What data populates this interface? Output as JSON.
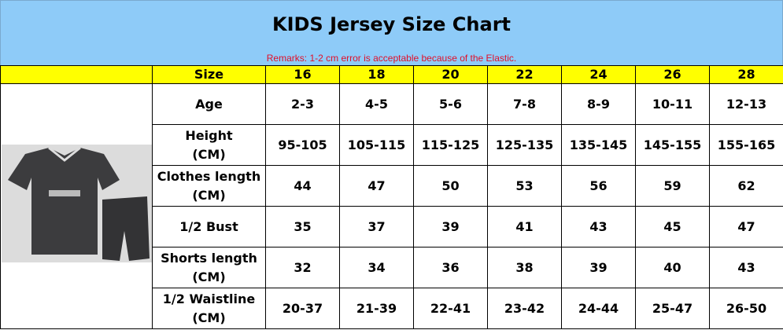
{
  "header": {
    "title": "KIDS Jersey Size Chart",
    "remark": "Remarks: 1-2 cm error is acceptable because of the Elastic."
  },
  "table": {
    "size_label": "Size",
    "sizes": [
      16,
      18,
      20,
      22,
      24,
      26,
      28
    ],
    "rows": [
      {
        "label": [
          "Age"
        ],
        "values": [
          "2-3",
          "4-5",
          "5-6",
          "7-8",
          "8-9",
          "10-11",
          "12-13"
        ]
      },
      {
        "label": [
          "Height",
          "(CM)"
        ],
        "values": [
          "95-105",
          "105-115",
          "115-125",
          "125-135",
          "135-145",
          "145-155",
          "155-165"
        ]
      },
      {
        "label": [
          "Clothes length",
          "(CM)"
        ],
        "values": [
          44,
          47,
          50,
          53,
          56,
          59,
          62
        ]
      },
      {
        "label": [
          "1/2 Bust"
        ],
        "values": [
          35,
          37,
          39,
          41,
          43,
          45,
          47
        ]
      },
      {
        "label": [
          "Shorts length",
          "(CM)"
        ],
        "values": [
          32,
          34,
          36,
          38,
          39,
          40,
          43
        ]
      },
      {
        "label": [
          "1/2 Waistline",
          "(CM)"
        ],
        "values": [
          "20-37",
          "21-39",
          "22-41",
          "23-42",
          "24-44",
          "25-47",
          "26-50"
        ]
      }
    ]
  }
}
